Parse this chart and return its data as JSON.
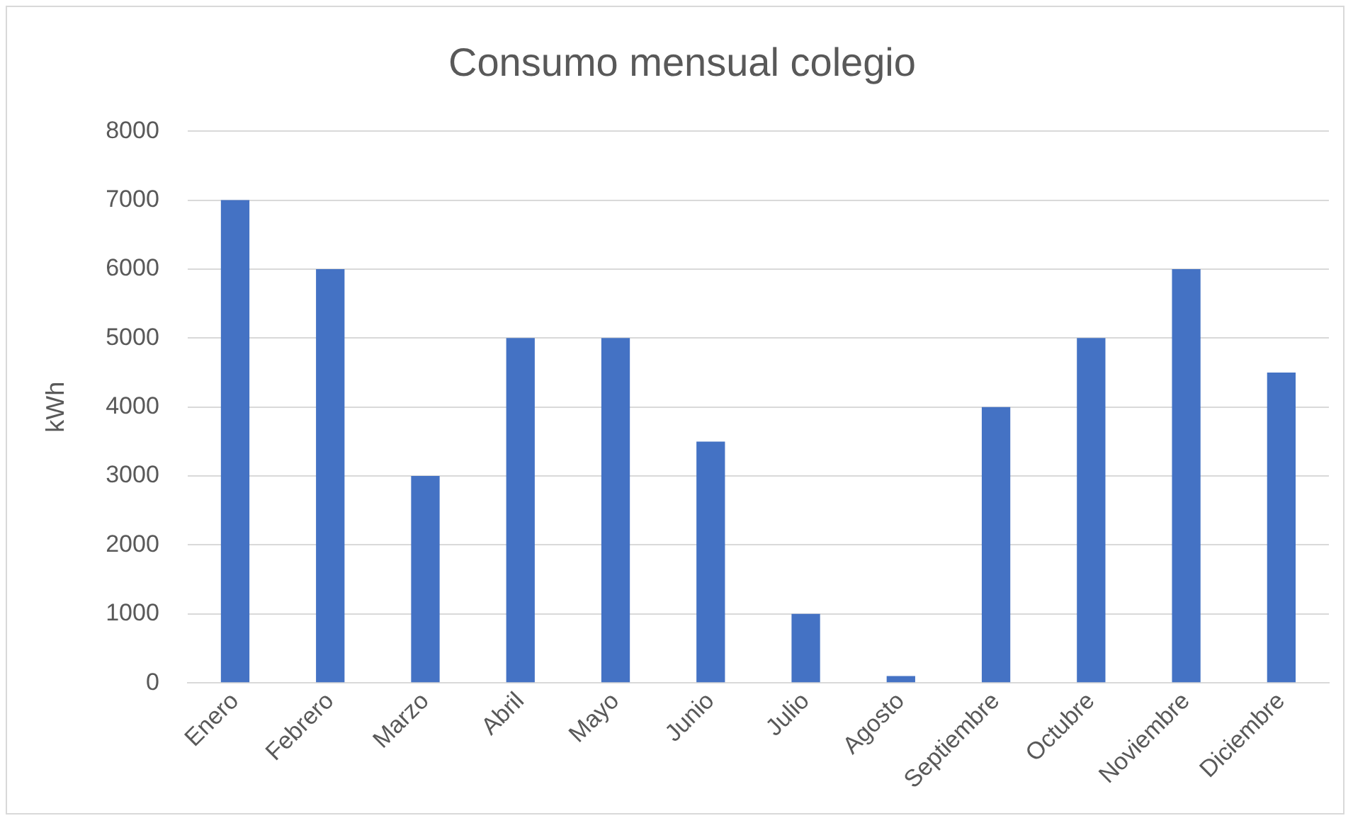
{
  "chart_data": {
    "type": "bar",
    "title": "Consumo mensual colegio",
    "ylabel": "kWh",
    "categories": [
      "Enero",
      "Febrero",
      "Marzo",
      "Abril",
      "Mayo",
      "Junio",
      "Julio",
      "Agosto",
      "Septiembre",
      "Octubre",
      "Noviembre",
      "Diciembre"
    ],
    "values": [
      7000,
      6000,
      3000,
      5000,
      5000,
      3500,
      1000,
      100,
      4000,
      5000,
      6000,
      4500
    ],
    "color": "#4472c4",
    "ylim": [
      0,
      8000
    ],
    "yticks": [
      0,
      1000,
      2000,
      3000,
      4000,
      5000,
      6000,
      7000,
      8000
    ],
    "grid": "y",
    "legend": false
  }
}
